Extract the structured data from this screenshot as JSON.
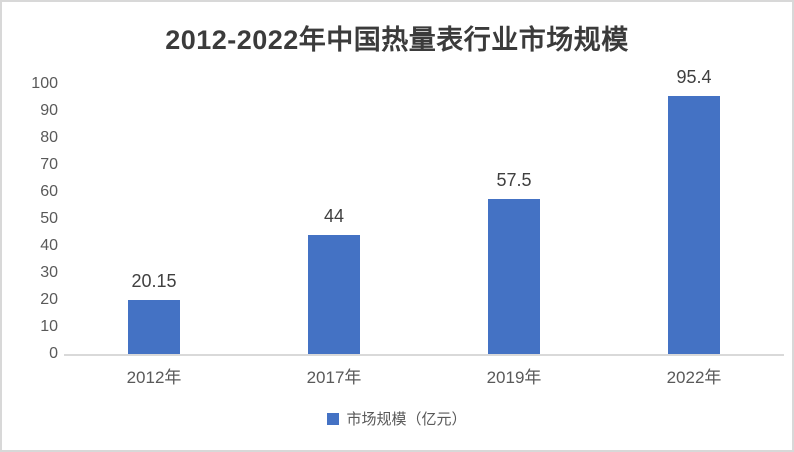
{
  "chart_data": {
    "type": "bar",
    "title": "2012-2022年中国热量表行业市场规模",
    "categories": [
      "2012年",
      "2017年",
      "2019年",
      "2022年"
    ],
    "values": [
      20.15,
      44,
      57.5,
      95.4
    ],
    "value_labels": [
      "20.15",
      "44",
      "57.5",
      "95.4"
    ],
    "series_name": "市场规模（亿元）",
    "xlabel": "",
    "ylabel": "",
    "ylim": [
      0,
      100
    ],
    "yticks": [
      0,
      10,
      20,
      30,
      40,
      50,
      60,
      70,
      80,
      90,
      100
    ],
    "grid": false,
    "legend_position": "bottom"
  },
  "legend": {
    "label": "市场规模（亿元）"
  },
  "colors": {
    "bar": "#4472c4",
    "axis_line": "#d9d9d9",
    "title_text": "#3b3b3b",
    "tick_text": "#595959",
    "value_label_text": "#404040",
    "frame_border": "#d8d8d8",
    "background": "#ffffff"
  }
}
